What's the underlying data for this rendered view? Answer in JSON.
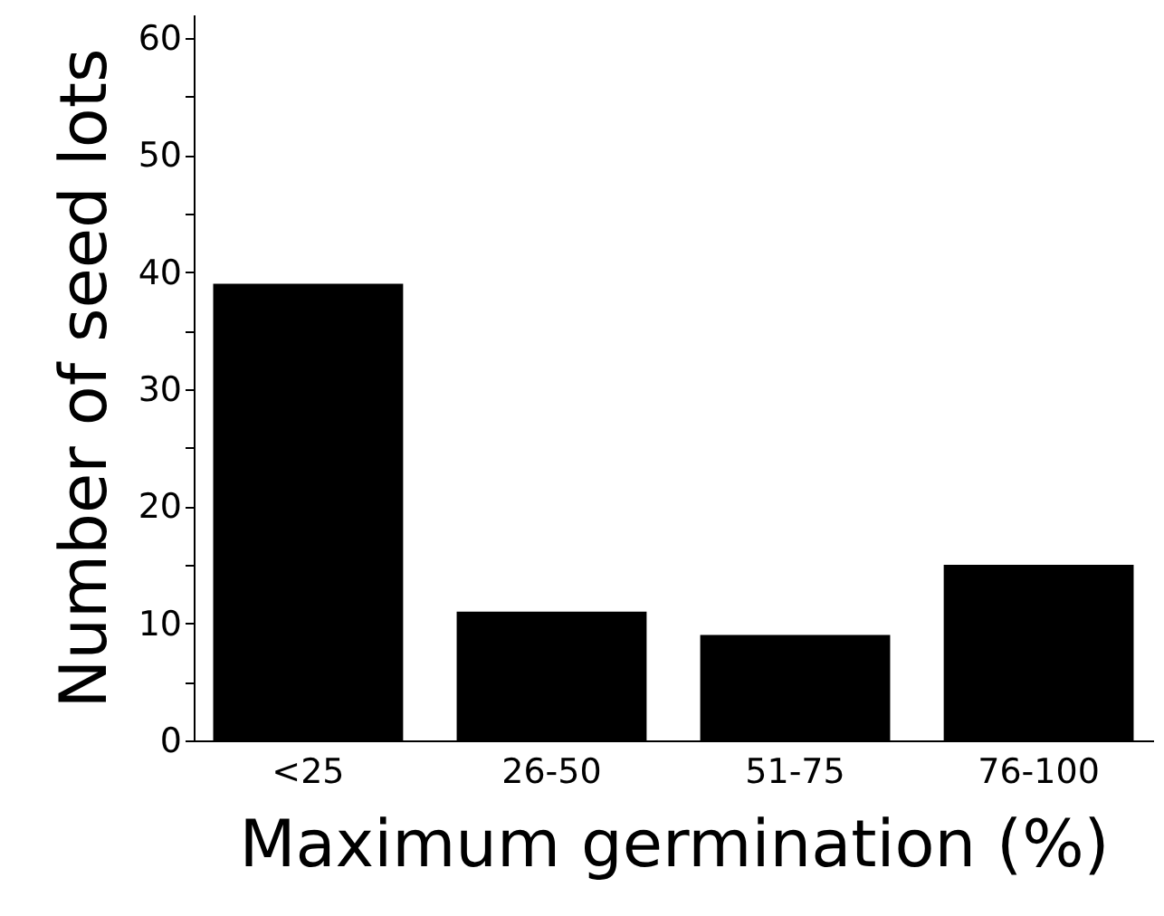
{
  "chart_data": {
    "type": "bar",
    "xlabel": "Maximum germination (%)",
    "ylabel": "Number of seed lots",
    "categories": [
      "<25",
      "26-50",
      "51-75",
      "76-100"
    ],
    "values": [
      39,
      11,
      9,
      15
    ],
    "color": "#000000",
    "ylim": [
      0,
      62
    ],
    "yticks": [
      0,
      {
        "value": 5,
        "label": null
      },
      10,
      {
        "value": 15,
        "label": null
      },
      20,
      {
        "value": 25,
        "label": null
      },
      30,
      {
        "value": 35,
        "label": null
      },
      40,
      {
        "value": 45,
        "label": null
      },
      50,
      {
        "value": 55,
        "label": null
      },
      60
    ],
    "grid": false
  }
}
